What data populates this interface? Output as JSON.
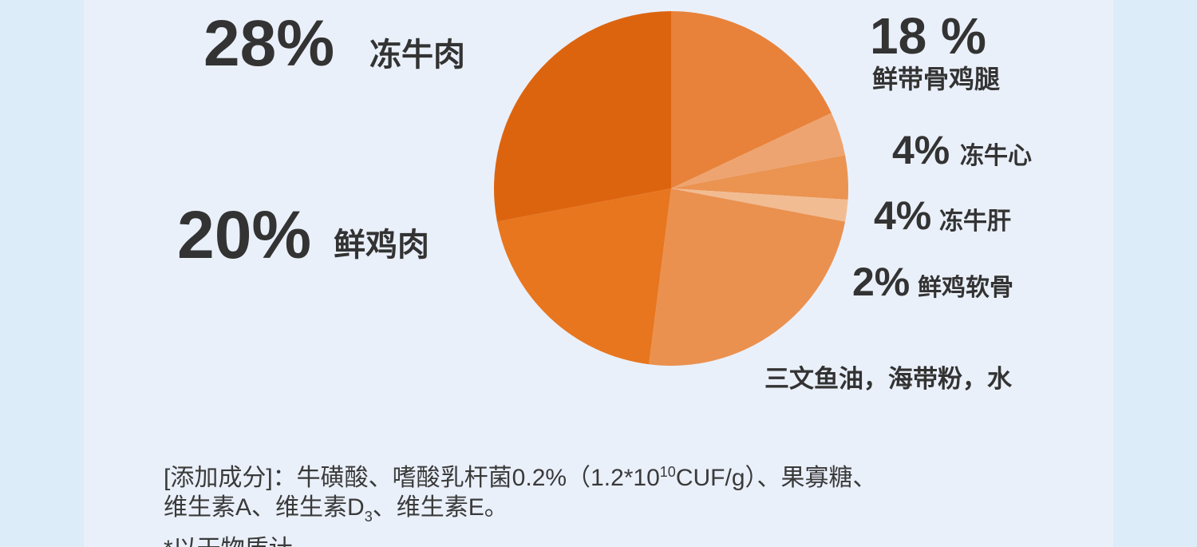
{
  "chart_data": {
    "type": "pie",
    "categories": [
      "鲜带骨鸡腿",
      "冻牛心",
      "冻牛肝",
      "鲜鸡软骨",
      "三文鱼油，海带粉，水",
      "鲜鸡肉",
      "冻牛肉"
    ],
    "values": [
      18,
      4,
      4,
      2,
      24,
      20,
      28
    ],
    "value_labels": [
      "18 %",
      "4%",
      "4%",
      "2%",
      null,
      "20%",
      "28%"
    ],
    "colors": [
      "#e8823a",
      "#eea470",
      "#eb9350",
      "#f2bc92",
      "#ea9150",
      "#e8761f",
      "#dd640e"
    ]
  },
  "additive_note": {
    "line1": {
      "before": "[添加成分]：牛磺酸、嗜酸乳杆菌0.2%（1.2*10",
      "sup": "10",
      "after": "CUF/g）、果寡糖、"
    },
    "line2": {
      "before": "维生素A、维生素D",
      "sub": "3",
      "after": "、维生素E。"
    },
    "line3": "*以干物质计"
  }
}
